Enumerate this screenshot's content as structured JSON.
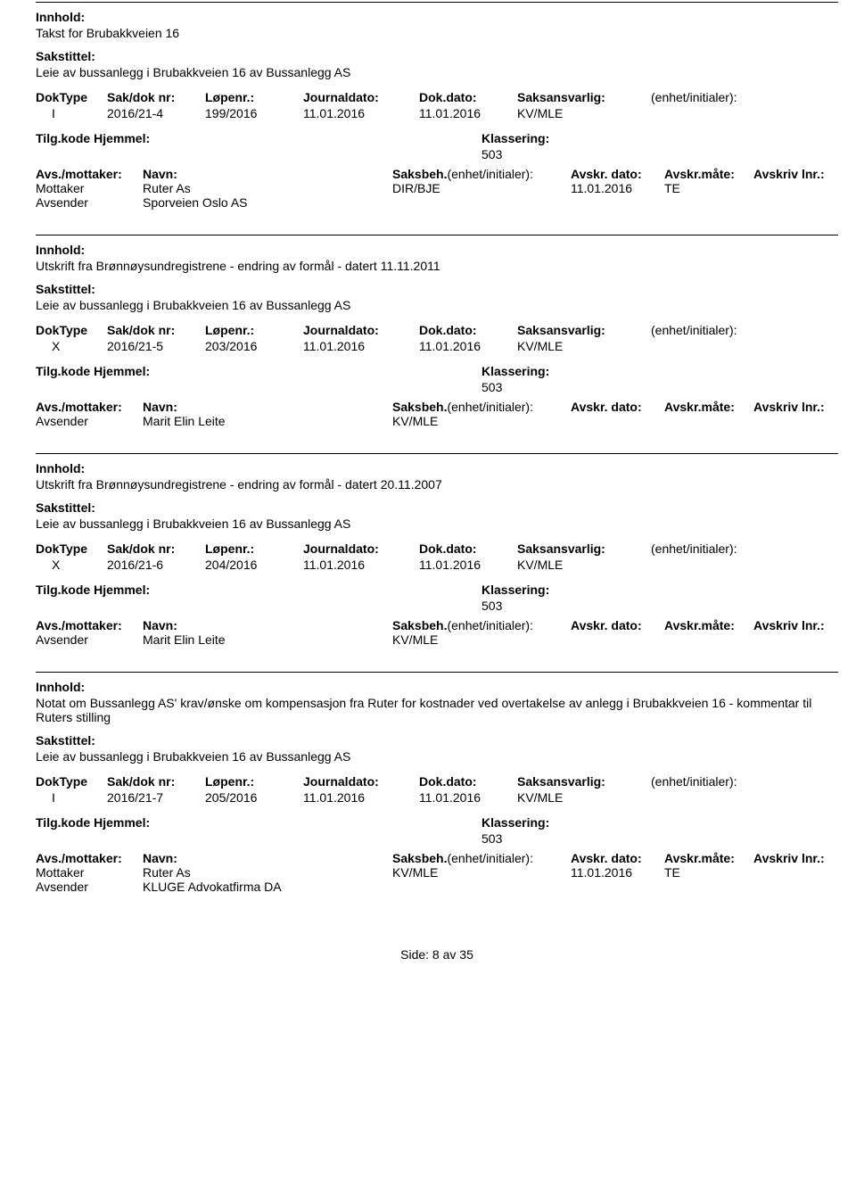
{
  "labels": {
    "innhold": "Innhold:",
    "sakstittel": "Sakstittel:",
    "doktype": "DokType",
    "sakdoknr": "Sak/dok nr:",
    "lopenr": "Løpenr.:",
    "journaldato": "Journaldato:",
    "dokdato": "Dok.dato:",
    "saksansvarlig": "Saksansvarlig:",
    "enhetinit": "(enhet/initialer):",
    "tilgkode": "Tilg.kode",
    "hjemmel": "Hjemmel:",
    "klassering": "Klassering:",
    "avsmottaker": "Avs./mottaker:",
    "navn": "Navn:",
    "saksbeh": "Saksbeh.",
    "saksbeh_init": "(enhet/initialer):",
    "avskrdato": "Avskr. dato:",
    "avskrmate": "Avskr.måte:",
    "avskrivlnr": "Avskriv lnr.:",
    "mottaker": "Mottaker",
    "avsender": "Avsender"
  },
  "records": [
    {
      "innhold": "Takst for Brubakkveien 16",
      "sakstittel": "Leie av bussanlegg i Brubakkveien 16 av Bussanlegg AS",
      "doktype": "I",
      "sakdoknr": "2016/21-4",
      "lopenr": "199/2016",
      "journaldato": "11.01.2016",
      "dokdato": "11.01.2016",
      "saksansvarlig": "KV/MLE",
      "klassering": "503",
      "parties": [
        {
          "role": "Mottaker",
          "name": "Ruter As",
          "saksbeh": "DIR/BJE",
          "avskrdato": "11.01.2016",
          "avskrmate": "TE"
        },
        {
          "role": "Avsender",
          "name": "Sporveien Oslo AS",
          "saksbeh": "",
          "avskrdato": "",
          "avskrmate": ""
        }
      ]
    },
    {
      "innhold": "Utskrift fra Brønnøysundregistrene - endring av formål - datert 11.11.2011",
      "sakstittel": "Leie av bussanlegg i Brubakkveien 16 av Bussanlegg AS",
      "doktype": "X",
      "sakdoknr": "2016/21-5",
      "lopenr": "203/2016",
      "journaldato": "11.01.2016",
      "dokdato": "11.01.2016",
      "saksansvarlig": "KV/MLE",
      "klassering": "503",
      "parties": [
        {
          "role": "Avsender",
          "name": "Marit Elin Leite",
          "saksbeh": "KV/MLE",
          "avskrdato": "",
          "avskrmate": ""
        }
      ]
    },
    {
      "innhold": "Utskrift fra Brønnøysundregistrene - endring av formål - datert 20.11.2007",
      "sakstittel": "Leie av bussanlegg i Brubakkveien 16 av Bussanlegg AS",
      "doktype": "X",
      "sakdoknr": "2016/21-6",
      "lopenr": "204/2016",
      "journaldato": "11.01.2016",
      "dokdato": "11.01.2016",
      "saksansvarlig": "KV/MLE",
      "klassering": "503",
      "parties": [
        {
          "role": "Avsender",
          "name": "Marit Elin Leite",
          "saksbeh": "KV/MLE",
          "avskrdato": "",
          "avskrmate": ""
        }
      ]
    },
    {
      "innhold": "Notat om Bussanlegg AS' krav/ønske om kompensasjon fra Ruter for kostnader ved overtakelse av anlegg i Brubakkveien 16 - kommentar til Ruters stilling",
      "sakstittel": "Leie av bussanlegg i Brubakkveien 16 av Bussanlegg AS",
      "doktype": "I",
      "sakdoknr": "2016/21-7",
      "lopenr": "205/2016",
      "journaldato": "11.01.2016",
      "dokdato": "11.01.2016",
      "saksansvarlig": "KV/MLE",
      "klassering": "503",
      "parties": [
        {
          "role": "Mottaker",
          "name": "Ruter As",
          "saksbeh": "KV/MLE",
          "avskrdato": "11.01.2016",
          "avskrmate": "TE"
        },
        {
          "role": "Avsender",
          "name": "KLUGE Advokatfirma DA",
          "saksbeh": "",
          "avskrdato": "",
          "avskrmate": ""
        }
      ]
    }
  ],
  "footer": "Side: 8 av 35"
}
